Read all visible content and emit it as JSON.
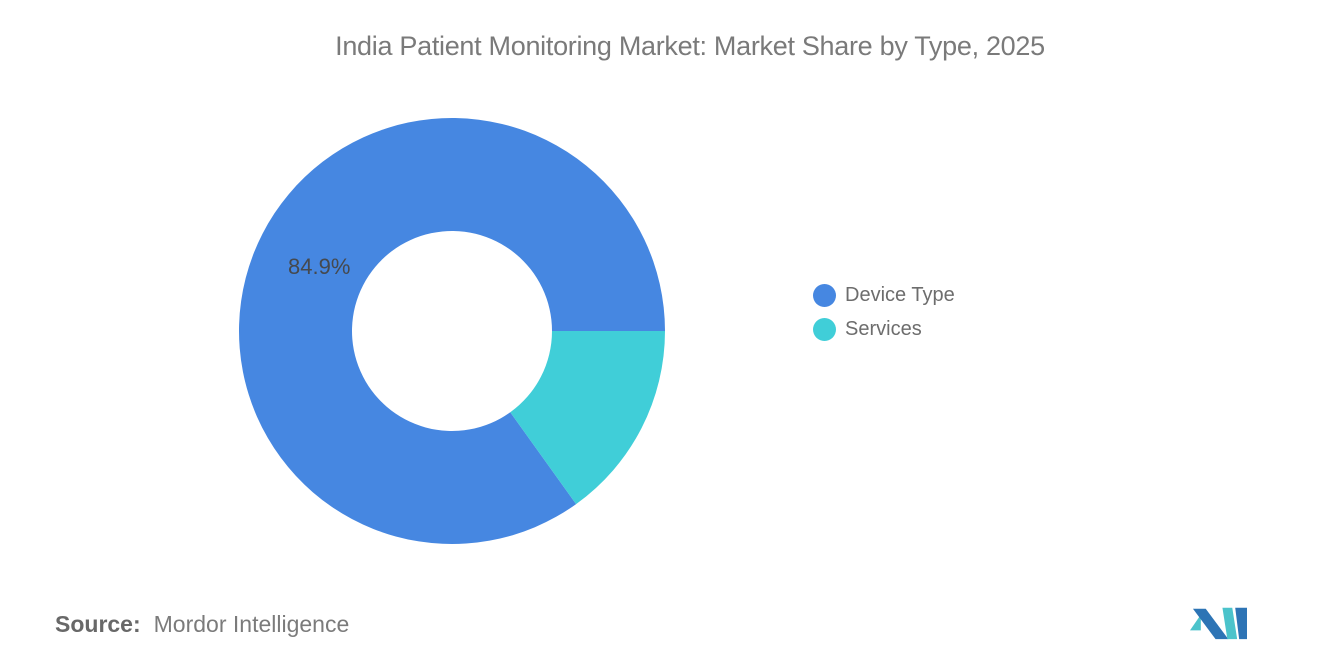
{
  "title": "India Patient Monitoring Market: Market Share by Type, 2025",
  "chart_data": {
    "type": "pie",
    "subtype": "donut",
    "title": "India Patient Monitoring Market: Market Share by Type, 2025",
    "slices": [
      {
        "label": "Device Type",
        "value": 84.9,
        "color": "#4687E1",
        "data_label": "84.9%"
      },
      {
        "label": "Services",
        "value": 15.1,
        "color": "#40CED8",
        "data_label": null
      }
    ],
    "start_angle_deg_from_3_oclock": 0,
    "direction": "clockwise",
    "inner_radius_ratio": 0.47,
    "legend_position": "right",
    "data_label_color": "#45494e",
    "background": "#ffffff"
  },
  "source": {
    "prefix": "Source:",
    "text": "Mordor Intelligence"
  },
  "logo": {
    "name": "mordor-intelligence-logo",
    "blue": "#2D74B5",
    "teal": "#4BC3CB"
  }
}
